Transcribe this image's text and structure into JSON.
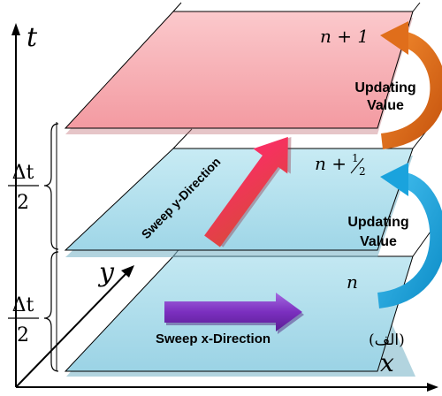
{
  "axes": {
    "t_label": "t",
    "x_label": "x",
    "y_label": "y"
  },
  "levels": {
    "n_plus_1": "n + 1",
    "n_plus_half_prefix": "n + ",
    "n_plus_half_num": "1",
    "n_plus_half_den": "2",
    "n": "n"
  },
  "intervals": {
    "top_numerator": "Δt",
    "top_denominator": "2",
    "bottom_numerator": "Δt",
    "bottom_denominator": "2"
  },
  "arrows": {
    "sweep_x_label": "Sweep x-Direction",
    "sweep_y_label": "Sweep y-Direction",
    "update_upper_line1": "Updating",
    "update_upper_line2": "Value",
    "update_lower_line1": "Updating",
    "update_lower_line2": "Value"
  },
  "figure_tag": "(الف)",
  "colors": {
    "top_plane": "#f7a9ae",
    "mid_plane": "#b3e1ee",
    "bottom_plane": "#b3e1ee",
    "sweep_x_arrow": "#7b2fbf",
    "sweep_y_arrow": "#ea2a54",
    "update_upper_arrow": "#e06e1b",
    "update_lower_arrow": "#1aa3dd"
  }
}
